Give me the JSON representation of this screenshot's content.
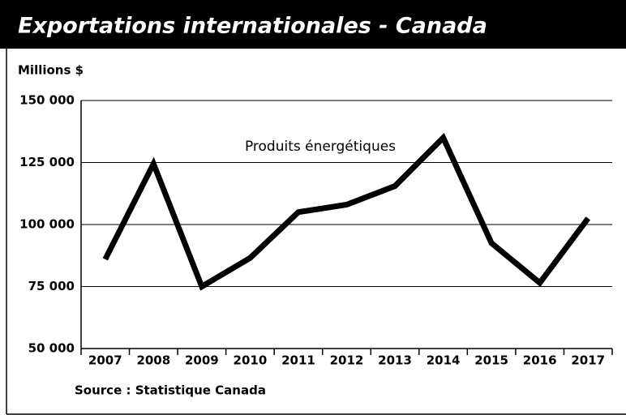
{
  "chart_data": {
    "type": "line",
    "title": "Exportations internationales - Canada",
    "y_label": "Millions $",
    "source": "Source : Statistique Canada",
    "categories": [
      "2007",
      "2008",
      "2009",
      "2010",
      "2011",
      "2012",
      "2013",
      "2014",
      "2015",
      "2016",
      "2017"
    ],
    "series": [
      {
        "name": "Produits énergétiques",
        "color": "#000000",
        "values": [
          86000,
          124500,
          75000,
          86500,
          105000,
          108000,
          115500,
          135000,
          92500,
          76500,
          102500
        ]
      }
    ],
    "ylim": [
      50000,
      150000
    ],
    "yticks": [
      {
        "value": 50000,
        "label": "50 000"
      },
      {
        "value": 75000,
        "label": "75 000"
      },
      {
        "value": 100000,
        "label": "100 000"
      },
      {
        "value": 125000,
        "label": "125 000"
      },
      {
        "value": 150000,
        "label": "150 000"
      }
    ],
    "grid": true
  }
}
